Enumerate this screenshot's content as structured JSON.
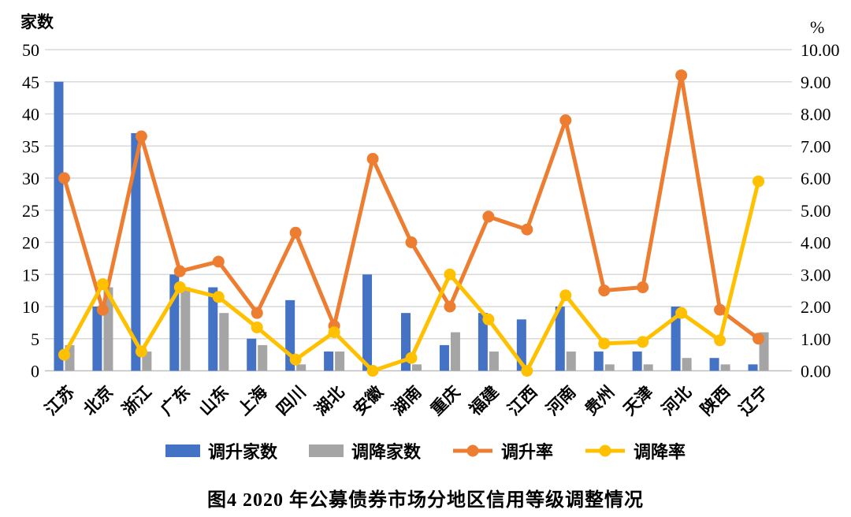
{
  "figure": {
    "caption": "图4  2020 年公募债券市场分地区信用等级调整情况",
    "left_axis_unit": "家数",
    "right_axis_unit": "%"
  },
  "chart_data": {
    "type": "bar",
    "subtype": "bar-line-combo",
    "title": "图4  2020 年公募债券市场分地区信用等级调整情况",
    "categories": [
      "江苏",
      "北京",
      "浙江",
      "广东",
      "山东",
      "上海",
      "四川",
      "湖北",
      "安徽",
      "湖南",
      "重庆",
      "福建",
      "江西",
      "河南",
      "贵州",
      "天津",
      "河北",
      "陕西",
      "辽宁"
    ],
    "series": [
      {
        "name": "调升家数",
        "type": "bar",
        "axis": "left",
        "color": "#4472C4",
        "values": [
          45,
          10,
          37,
          15,
          13,
          5,
          11,
          3,
          15,
          9,
          4,
          9,
          8,
          10,
          3,
          3,
          10,
          2,
          1
        ]
      },
      {
        "name": "调降家数",
        "type": "bar",
        "axis": "left",
        "color": "#A5A5A5",
        "values": [
          4,
          13,
          3,
          13,
          9,
          4,
          1,
          3,
          0,
          1,
          6,
          3,
          0,
          3,
          1,
          1,
          2,
          1,
          6
        ]
      },
      {
        "name": "调升率",
        "type": "line",
        "axis": "right",
        "color": "#ED7D31",
        "values": [
          6.0,
          1.9,
          7.3,
          3.1,
          3.4,
          1.8,
          4.3,
          1.4,
          6.6,
          4.0,
          2.0,
          4.8,
          4.4,
          7.8,
          2.5,
          2.6,
          9.2,
          1.9,
          1.0
        ]
      },
      {
        "name": "调降率",
        "type": "line",
        "axis": "right",
        "color": "#FFC000",
        "values": [
          0.5,
          2.7,
          0.6,
          2.6,
          2.3,
          1.35,
          0.35,
          1.2,
          0.0,
          0.4,
          3.0,
          1.6,
          0.0,
          2.35,
          0.85,
          0.9,
          1.8,
          0.95,
          5.9
        ]
      }
    ],
    "left_axis": {
      "title": "家数",
      "min": 0,
      "max": 50,
      "step": 5,
      "ticks": [
        "0",
        "5",
        "10",
        "15",
        "20",
        "25",
        "30",
        "35",
        "40",
        "45",
        "50"
      ]
    },
    "right_axis": {
      "title": "%",
      "min": 0,
      "max": 10,
      "step": 1,
      "ticks": [
        "0.00",
        "1.00",
        "2.00",
        "3.00",
        "4.00",
        "5.00",
        "6.00",
        "7.00",
        "8.00",
        "9.00",
        "10.00"
      ]
    },
    "grid": "horizontal",
    "legend_position": "bottom",
    "colors": {
      "upgrade_bar": "#4472C4",
      "downgrade_bar": "#A5A5A5",
      "upgrade_rate_line": "#ED7D31",
      "downgrade_rate_line": "#FFC000",
      "gridline": "#D9D9D9",
      "baseline": "#BFBFBF",
      "text": "#000000"
    }
  }
}
